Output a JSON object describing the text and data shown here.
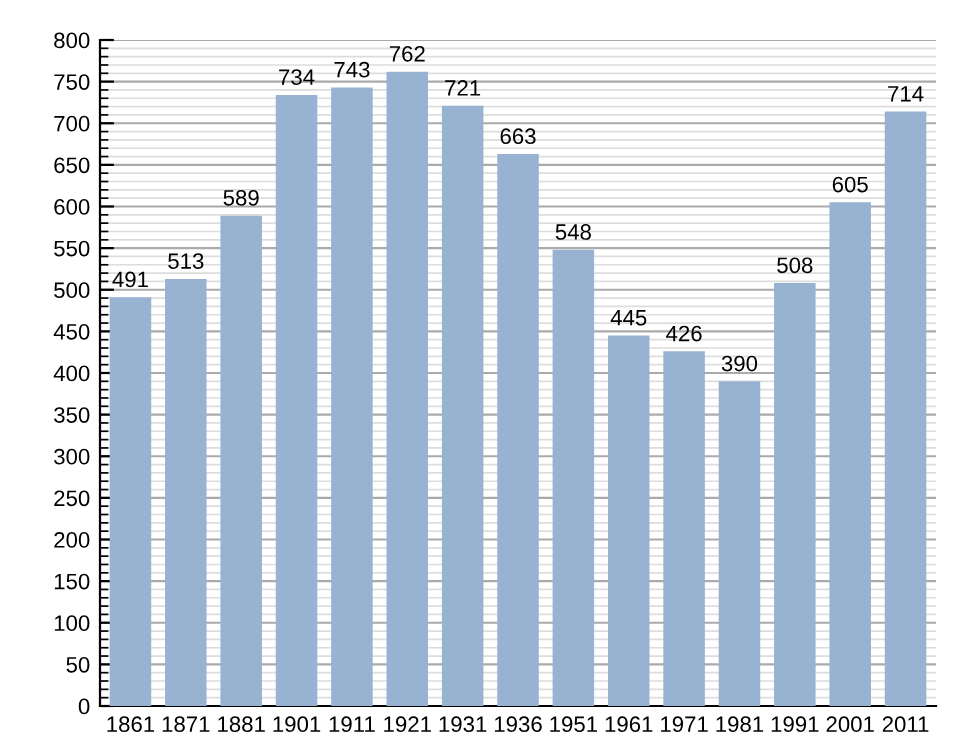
{
  "chart_data": {
    "type": "bar",
    "categories": [
      "1861",
      "1871",
      "1881",
      "1901",
      "1911",
      "1921",
      "1931",
      "1936",
      "1951",
      "1961",
      "1971",
      "1981",
      "1991",
      "2001",
      "2011"
    ],
    "values": [
      491,
      513,
      589,
      734,
      743,
      762,
      721,
      663,
      548,
      445,
      426,
      390,
      508,
      605,
      714
    ],
    "color": "#98b2d1",
    "ylim": [
      0,
      800
    ],
    "yticks": [
      0,
      50,
      100,
      150,
      200,
      250,
      300,
      350,
      400,
      450,
      500,
      550,
      600,
      650,
      700,
      750,
      800
    ],
    "grid": "y",
    "data_labels": true
  }
}
